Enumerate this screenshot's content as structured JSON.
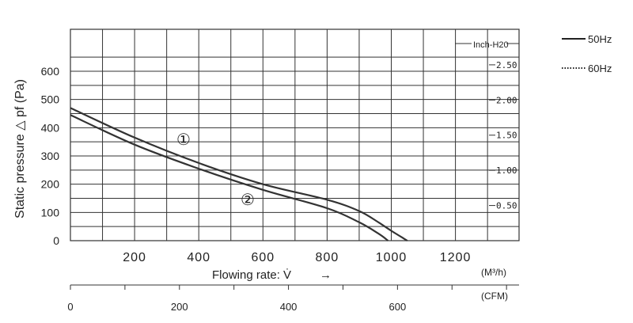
{
  "chart_data": {
    "type": "line",
    "ylabel": "Static pressure △ pf (Pa)",
    "xlabel": "Flowing rate: V̇",
    "x_arrow": "→",
    "x_unit": "(M³/h)",
    "x_ticks": [
      200,
      400,
      600,
      800,
      1000,
      1200
    ],
    "xlim": [
      0,
      1450
    ],
    "y_ticks": [
      0,
      100,
      200,
      300,
      400,
      500,
      600
    ],
    "ylim": [
      0,
      700
    ],
    "grid": true,
    "right_axis": {
      "title": "Inch-H20",
      "ticks": [
        {
          "value": 0.5,
          "label": "0.50"
        },
        {
          "value": 1.0,
          "label": "1.00"
        },
        {
          "value": 1.5,
          "label": "1.50"
        },
        {
          "value": 2.0,
          "label": "2.00"
        },
        {
          "value": 2.5,
          "label": "2.50"
        }
      ]
    },
    "secondary_x_axis": {
      "unit": "(CFM)",
      "ticks": [
        0,
        200,
        400,
        600
      ]
    },
    "legend": [
      {
        "label": "50Hz",
        "style": "solid"
      },
      {
        "label": "60Hz",
        "style": "dotted"
      }
    ],
    "series": [
      {
        "label": "①",
        "x": [
          0,
          200,
          400,
          600,
          800,
          900,
          960,
          1000,
          1050
        ],
        "y": [
          470,
          365,
          275,
          200,
          145,
          105,
          65,
          35,
          0
        ]
      },
      {
        "label": "②",
        "x": [
          0,
          200,
          400,
          600,
          800,
          900,
          960,
          990
        ],
        "y": [
          445,
          340,
          255,
          180,
          115,
          65,
          25,
          0
        ]
      }
    ]
  }
}
